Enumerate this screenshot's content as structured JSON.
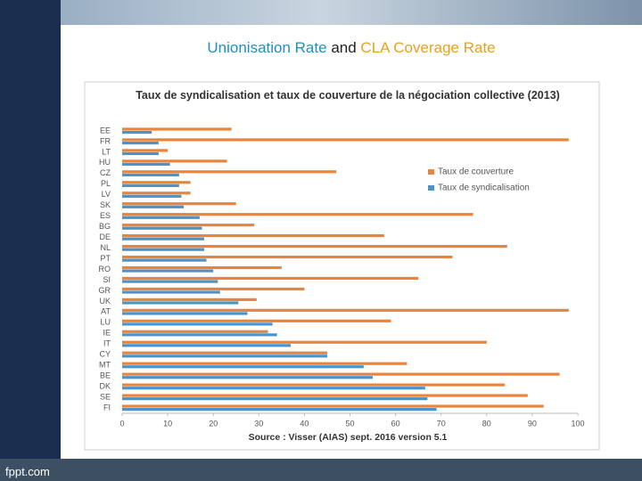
{
  "slide": {
    "title_parts": [
      "Unionisation Rate",
      "and",
      "CLA Coverage Rate"
    ],
    "footer": "fppt.com"
  },
  "chart_data": {
    "type": "bar",
    "orientation": "horizontal",
    "title": "Taux de syndicalisation et taux de couverture de la négociation collective (2013)",
    "source": "Source :  Visser (AIAS) sept. 2016 version 5.1",
    "categories": [
      "EE",
      "FR",
      "LT",
      "HU",
      "CZ",
      "PL",
      "LV",
      "SK",
      "ES",
      "BG",
      "DE",
      "NL",
      "PT",
      "RO",
      "SI",
      "GR",
      "UK",
      "AT",
      "LU",
      "IE",
      "IT",
      "CY",
      "MT",
      "BE",
      "DK",
      "SE",
      "FI"
    ],
    "series": [
      {
        "name": "Taux de couverture",
        "color": "#e8843c",
        "values": [
          24,
          98,
          10,
          23,
          47,
          15,
          15,
          25,
          77,
          29,
          57.5,
          84.5,
          72.5,
          35,
          65,
          40,
          29.5,
          98,
          59,
          32,
          80,
          45,
          62.5,
          96,
          84,
          89,
          92.5
        ]
      },
      {
        "name": "Taux de syndicalisation",
        "color": "#4f92c8",
        "values": [
          6.5,
          8,
          8,
          10.5,
          12.5,
          12.5,
          13,
          13.5,
          17,
          17.5,
          18,
          18,
          18.5,
          20,
          21,
          21.5,
          25.5,
          27.5,
          33,
          34,
          37,
          45,
          53,
          55,
          66.5,
          67,
          69
        ]
      }
    ],
    "xlim": [
      0,
      100
    ],
    "xticks": [
      0,
      10,
      20,
      30,
      40,
      50,
      60,
      70,
      80,
      90,
      100
    ],
    "grid": false,
    "legend": "right"
  }
}
